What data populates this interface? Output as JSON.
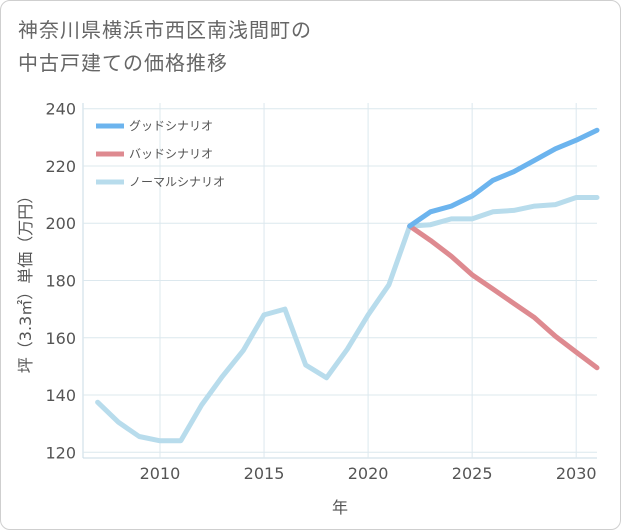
{
  "title_line1": "神奈川県横浜市西区南浅間町の",
  "title_line2": "中古戸建ての価格推移",
  "chart_data": {
    "type": "line",
    "xlabel": "年",
    "ylabel": "坪（3.3㎡）単価（万円）",
    "xlim": [
      2006.3,
      2031
    ],
    "ylim": [
      118,
      242
    ],
    "xticks": [
      2010,
      2015,
      2020,
      2025,
      2030
    ],
    "yticks": [
      120,
      140,
      160,
      180,
      200,
      220,
      240
    ],
    "legend_position": "top-left",
    "series": [
      {
        "name": "グッドシナリオ",
        "color": "#6cb4ee",
        "x": [
          2022,
          2023,
          2024,
          2025,
          2026,
          2027,
          2028,
          2029,
          2030,
          2031
        ],
        "values": [
          199,
          204,
          206,
          209.5,
          215,
          218,
          222,
          226,
          229,
          232.5
        ]
      },
      {
        "name": "バッドシナリオ",
        "color": "#de8a90",
        "x": [
          2022,
          2023,
          2024,
          2025,
          2026,
          2027,
          2028,
          2029,
          2030,
          2031
        ],
        "values": [
          199,
          194,
          188.5,
          182,
          177,
          172,
          167,
          160.5,
          155,
          149.5
        ]
      },
      {
        "name": "ノーマルシナリオ",
        "color": "#b8dcec",
        "x": [
          2007,
          2008,
          2009,
          2010,
          2011,
          2012,
          2013,
          2014,
          2015,
          2016,
          2017,
          2018,
          2019,
          2020,
          2021,
          2022,
          2023,
          2024,
          2025,
          2026,
          2027,
          2028,
          2029,
          2030,
          2031
        ],
        "values": [
          137.5,
          130.5,
          125.5,
          124,
          124,
          136.5,
          146.5,
          155.5,
          168,
          170,
          150.5,
          146,
          156,
          168,
          178.5,
          199,
          199.5,
          201.5,
          201.5,
          204,
          204.5,
          206,
          206.5,
          209,
          209
        ]
      }
    ]
  }
}
